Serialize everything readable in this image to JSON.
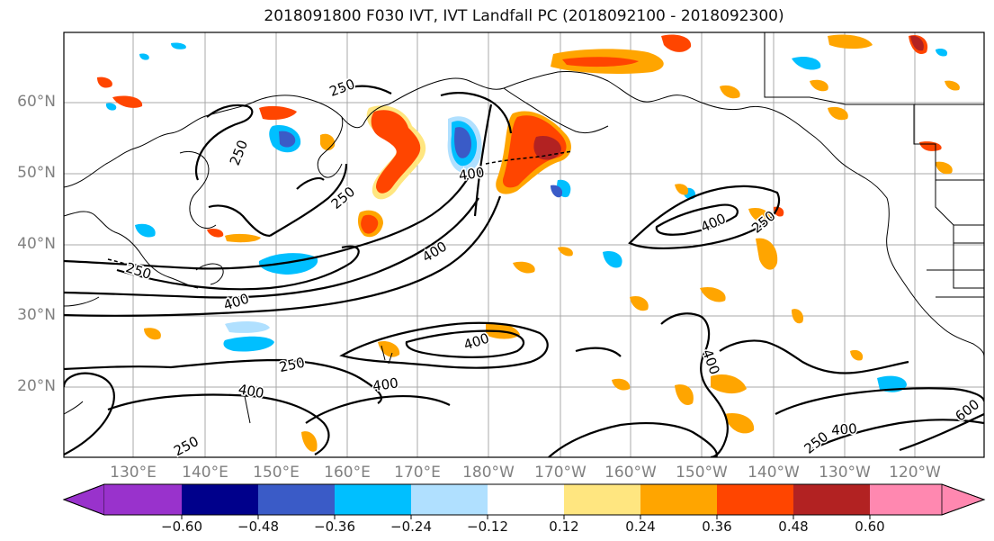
{
  "title": "2018091800 F030 IVT, IVT Landfall PC (2018092100 - 2018092300)",
  "latitude_labels": [
    "60°N",
    "50°N",
    "40°N",
    "30°N",
    "20°N"
  ],
  "longitude_labels": [
    "130°E",
    "140°E",
    "150°E",
    "160°E",
    "170°E",
    "180°W",
    "170°W",
    "160°W",
    "150°W",
    "140°W",
    "130°W",
    "120°W"
  ],
  "contour_labels": [
    "250",
    "250",
    "250",
    "250",
    "250",
    "250",
    "250",
    "250",
    "400",
    "400",
    "400",
    "400",
    "400",
    "400",
    "400",
    "400",
    "400",
    "600"
  ],
  "colorbar": {
    "ticks": [
      "−0.60",
      "−0.48",
      "−0.36",
      "−0.24",
      "−0.12",
      "0.12",
      "0.24",
      "0.36",
      "0.48",
      "0.60"
    ],
    "colors": [
      "#9932cc",
      "#00008b",
      "#3a5bc7",
      "#00bfff",
      "#b0e0ff",
      "#ffffff",
      "#ffe680",
      "#ffa500",
      "#ff4500",
      "#b22222",
      "#ff88b0"
    ]
  }
}
